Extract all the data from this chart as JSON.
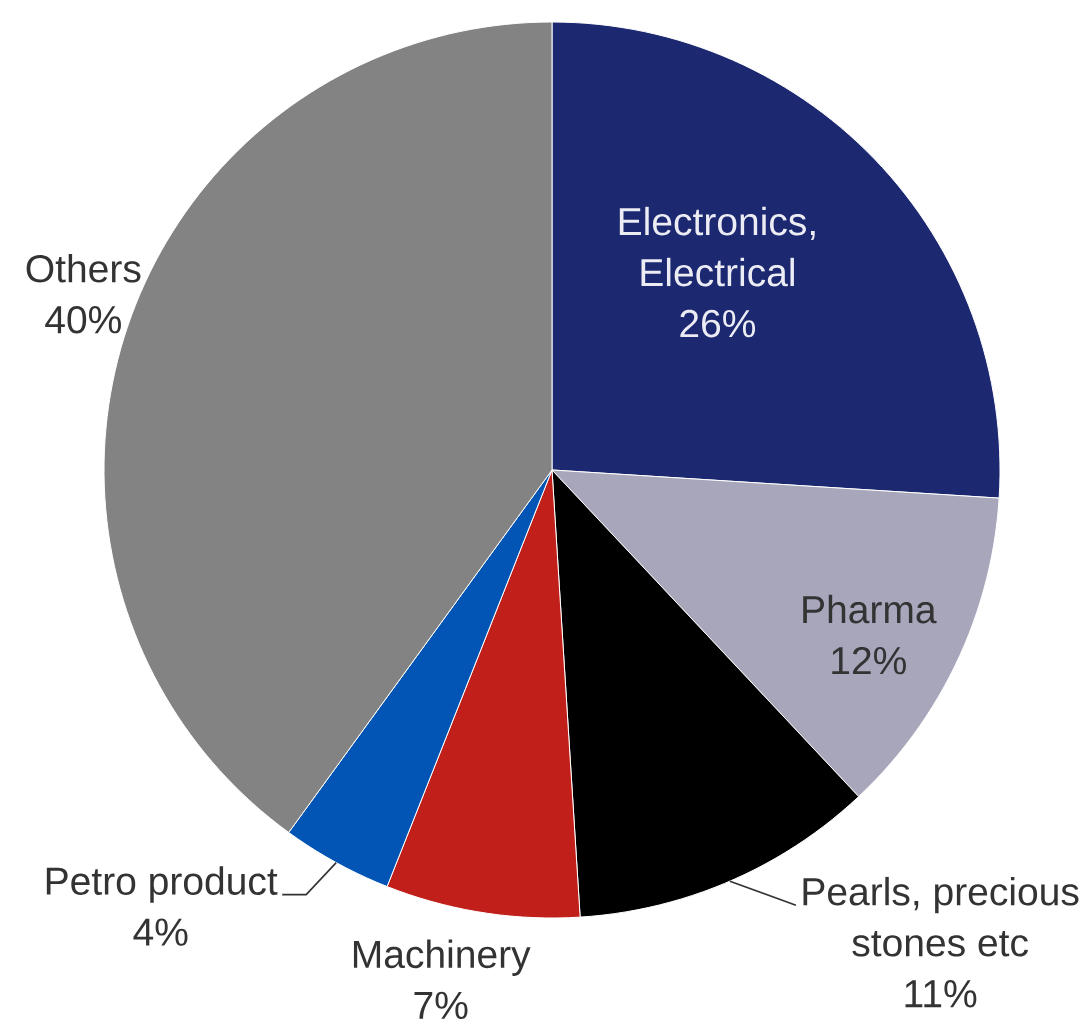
{
  "chart_data": {
    "type": "pie",
    "categories": [
      "Electronics, Electrical",
      "Pharma",
      "Pearls, precious stones etc",
      "Machinery",
      "Petro product",
      "Others"
    ],
    "values": [
      26,
      12,
      11,
      7,
      4,
      40
    ],
    "value_labels": [
      "26%",
      "12%",
      "11%",
      "7%",
      "4%",
      "40%"
    ],
    "colors": [
      "#1c2870",
      "#a7a6bb",
      "#000000",
      "#c01f1a",
      "#0255b5",
      "#838383"
    ]
  }
}
